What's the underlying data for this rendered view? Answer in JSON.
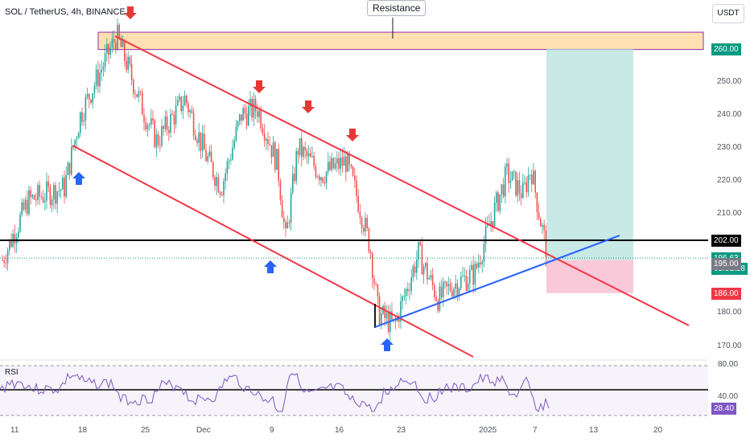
{
  "header": {
    "title": "SOL / TetherUS, 4h, BINANCE",
    "currency": "USDT"
  },
  "annotation": {
    "resistance_label": "Resistance"
  },
  "rsi": {
    "label": "RSI",
    "levels": [
      "80.00",
      "40.00"
    ],
    "current": "28.40"
  },
  "colors": {
    "up": "#26a69a",
    "down": "#ef5350",
    "channel": "#f23645",
    "trend": "#2962ff",
    "resistance_fill": "#ffe0b2",
    "resistance_border": "#9c27b0",
    "target": "#b2dfdb",
    "stop": "#f8bbd0",
    "rsi": "#7e57c2",
    "arrow_down": "#e53935",
    "arrow_up": "#2962ff"
  },
  "chart_data": {
    "type": "candlestick",
    "title": "SOL / TetherUS, 4h, BINANCE",
    "y_axis": {
      "ticks": [
        170,
        180,
        190,
        200,
        210,
        220,
        230,
        240,
        250,
        260
      ],
      "ylim": [
        166,
        272
      ]
    },
    "x_axis": {
      "ticks": [
        "11",
        "18",
        "25",
        "Dec",
        "9",
        "16",
        "23",
        "2025",
        "7",
        "13",
        "20"
      ]
    },
    "price_tags": [
      {
        "label": "260.00",
        "value": 260,
        "color": "#089981"
      },
      {
        "label": "202.00",
        "value": 202,
        "color": "#000000"
      },
      {
        "label": "196.63",
        "value": 196.63,
        "color": "#089981"
      },
      {
        "label": "01:51:28",
        "value": 193.5,
        "color": "#089981"
      },
      {
        "label": "195.00",
        "value": 195,
        "color": "#787b86"
      },
      {
        "label": "186.00",
        "value": 186,
        "color": "#f23645"
      }
    ],
    "resistance_zone": [
      260,
      265
    ],
    "support_line": 202,
    "target_zone": [
      196,
      260
    ],
    "stop_zone": [
      186,
      196
    ],
    "key_points": [
      {
        "date": "Nov 8",
        "value": 196
      },
      {
        "date": "Nov 22",
        "value": 264
      },
      {
        "date": "Dec 10",
        "value": 202
      },
      {
        "date": "Dec 20",
        "value": 176
      },
      {
        "date": "Jan 6",
        "value": 223
      },
      {
        "date": "Jan 8",
        "value": 196.63
      }
    ],
    "rsi_current": 28.4
  }
}
